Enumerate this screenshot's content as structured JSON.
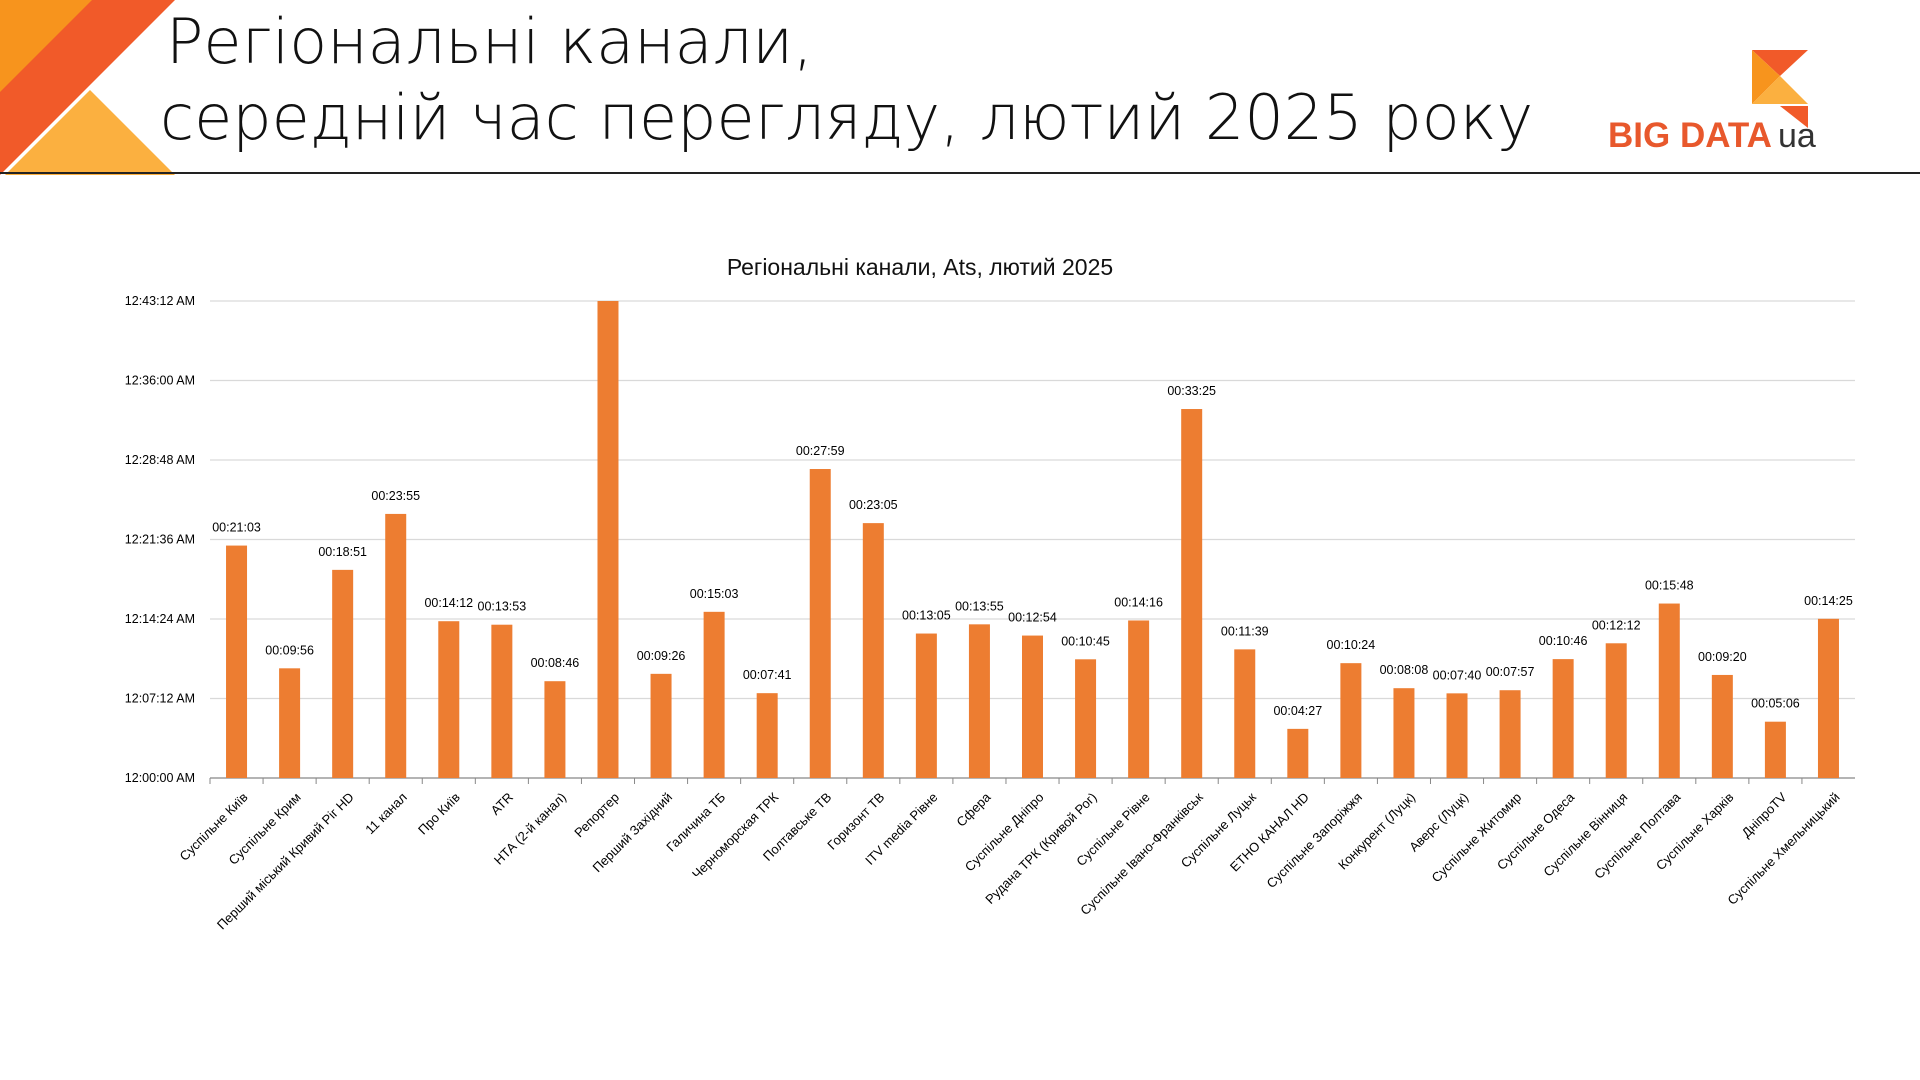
{
  "header": {
    "title_line1": "Регіональні канали,",
    "title_line2": "середній час перегляду, лютий 2025 року",
    "logo_text": "BIG DATA",
    "logo_suffix": "ua"
  },
  "colors": {
    "bar": "#ed7d31",
    "grid": "#d9d9d9",
    "accent_orange": "#f15a29",
    "accent_yellow": "#fbb040",
    "rule": "#222222"
  },
  "chart_data": {
    "type": "bar",
    "title": "Регіональні канали, Ats, лютий 2025",
    "xlabel": "",
    "ylabel": "",
    "ylim_seconds": [
      0,
      2592
    ],
    "yticks": [
      "12:00:00 AM",
      "12:07:12 AM",
      "12:14:24 AM",
      "12:21:36 AM",
      "12:28:48 AM",
      "12:36:00 AM",
      "12:43:12 AM"
    ],
    "grid": true,
    "legend": "none",
    "categories": [
      "Суспільне Київ",
      "Суспільне Крим",
      "Перший міський Кривий Ріг HD",
      "11 канал",
      "Про Київ",
      "ATR",
      "НТА (2-й канал)",
      "Репортер",
      "Перший Західний",
      "Галичина ТБ",
      "Черноморская ТРК",
      "Полтавське ТВ",
      "Горизонт ТВ",
      "ITV media Рівне",
      "Сфера",
      "Суспільне Дніпро",
      "Рудана ТРК (Кривой Рог)",
      "Суспільне Рівне",
      "Суспільне Івано-Франківськ",
      "Суспільне Луцьк",
      "ЕТНО КАНАЛ HD",
      "Суспільне Запоріжжя",
      "Конкурент (Луцк)",
      "Аверс (Луцк)",
      "Суспільне Житомир",
      "Суспільне Одеса",
      "Суспільне Вінниця",
      "Суспільне Полтава",
      "Суспільне Харків",
      "ДніпроTV",
      "Суспільне Хмельницький"
    ],
    "labels": [
      "00:21:03",
      "00:09:56",
      "00:18:51",
      "00:23:55",
      "00:14:12",
      "00:13:53",
      "00:08:46",
      "",
      "00:09:26",
      "00:15:03",
      "00:07:41",
      "00:27:59",
      "00:23:05",
      "00:13:05",
      "00:13:55",
      "00:12:54",
      "00:10:45",
      "00:14:16",
      "00:33:25",
      "00:11:39",
      "00:04:27",
      "00:10:24",
      "00:08:08",
      "00:07:40",
      "00:07:57",
      "00:10:46",
      "00:12:12",
      "00:15:48",
      "00:09:20",
      "00:05:06",
      "00:14:25"
    ],
    "values_seconds": [
      1263,
      596,
      1131,
      1435,
      852,
      833,
      526,
      2592,
      566,
      903,
      461,
      1679,
      1385,
      785,
      835,
      774,
      645,
      856,
      2005,
      699,
      267,
      624,
      488,
      460,
      477,
      646,
      732,
      948,
      560,
      306,
      865
    ]
  }
}
